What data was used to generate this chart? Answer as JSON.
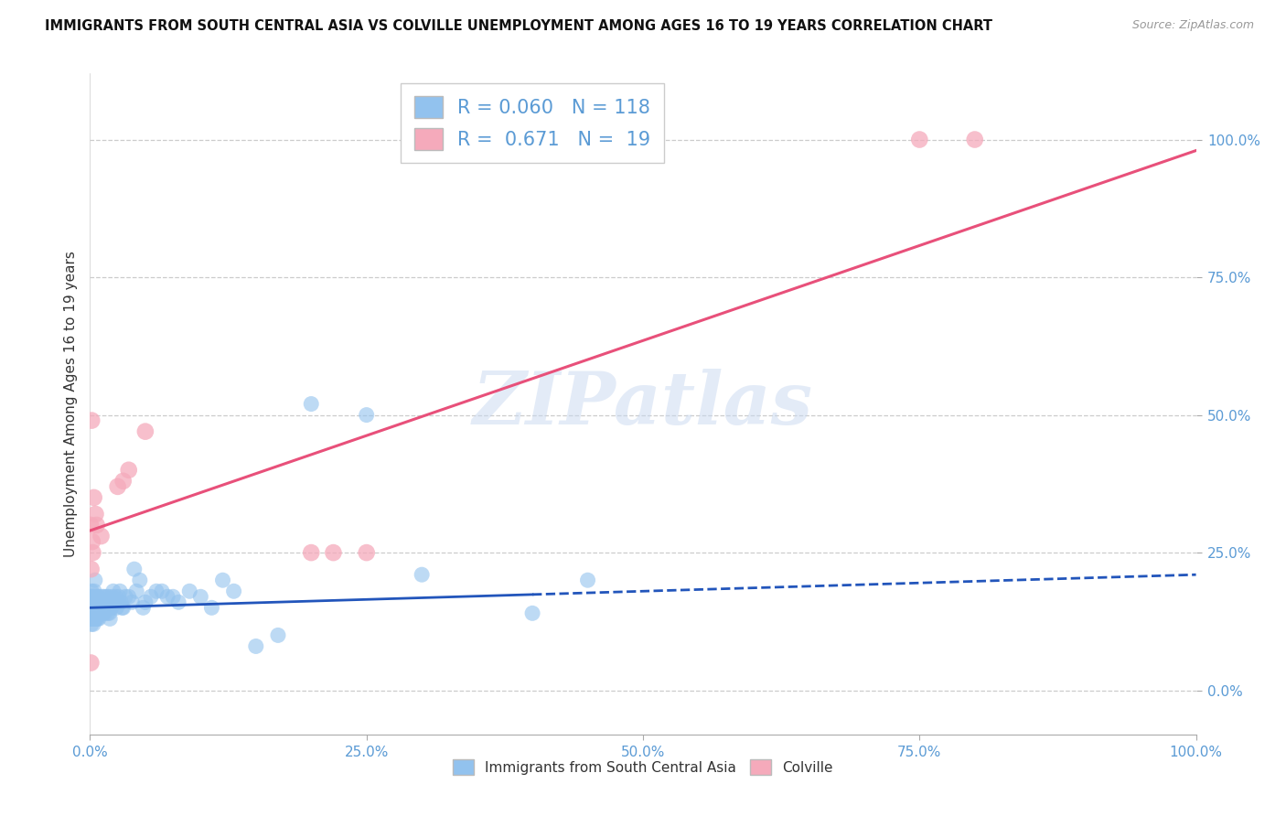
{
  "title": "IMMIGRANTS FROM SOUTH CENTRAL ASIA VS COLVILLE UNEMPLOYMENT AMONG AGES 16 TO 19 YEARS CORRELATION CHART",
  "source": "Source: ZipAtlas.com",
  "ylabel": "Unemployment Among Ages 16 to 19 years",
  "xlim": [
    0,
    100
  ],
  "ylim": [
    -8,
    112
  ],
  "xticks": [
    0,
    25,
    50,
    75,
    100
  ],
  "xtick_labels": [
    "0.0%",
    "25.0%",
    "50.0%",
    "75.0%",
    "100.0%"
  ],
  "yticks": [
    0,
    25,
    50,
    75,
    100
  ],
  "ytick_labels": [
    "0.0%",
    "25.0%",
    "50.0%",
    "75.0%",
    "100.0%"
  ],
  "blue_R": 0.06,
  "blue_N": 118,
  "pink_R": 0.671,
  "pink_N": 19,
  "blue_color": "#92C2EE",
  "pink_color": "#F5AABB",
  "blue_line_color": "#2255BB",
  "pink_line_color": "#E8507A",
  "blue_label": "Immigrants from South Central Asia",
  "pink_label": "Colville",
  "background_color": "#FFFFFF",
  "grid_color": "#CCCCCC",
  "watermark": "ZIPatlas",
  "blue_scatter_x": [
    0.05,
    0.07,
    0.08,
    0.1,
    0.12,
    0.14,
    0.15,
    0.16,
    0.18,
    0.2,
    0.22,
    0.24,
    0.25,
    0.26,
    0.28,
    0.3,
    0.32,
    0.34,
    0.35,
    0.36,
    0.38,
    0.4,
    0.42,
    0.44,
    0.45,
    0.46,
    0.48,
    0.5,
    0.52,
    0.54,
    0.56,
    0.58,
    0.6,
    0.62,
    0.64,
    0.66,
    0.68,
    0.7,
    0.72,
    0.74,
    0.76,
    0.78,
    0.8,
    0.85,
    0.9,
    0.95,
    1.0,
    1.1,
    1.2,
    1.3,
    1.4,
    1.5,
    1.6,
    1.7,
    1.8,
    1.9,
    2.0,
    2.2,
    2.4,
    2.6,
    2.8,
    3.0,
    3.5,
    4.0,
    4.5,
    5.0,
    6.0,
    7.0,
    8.0,
    9.0,
    10.0,
    11.0,
    12.0,
    13.0,
    15.0,
    17.0,
    20.0,
    25.0,
    30.0,
    40.0,
    1.05,
    1.15,
    1.25,
    1.35,
    1.45,
    1.55,
    1.65,
    1.75,
    1.85,
    1.95,
    2.1,
    2.3,
    2.5,
    2.7,
    2.9,
    3.2,
    3.8,
    4.2,
    4.8,
    5.5,
    6.5,
    7.5,
    0.09,
    0.11,
    0.13,
    0.17,
    0.19,
    0.21,
    0.23,
    0.27,
    0.29,
    0.31,
    0.33,
    0.37,
    0.39,
    0.41,
    0.43,
    45.0
  ],
  "blue_scatter_y": [
    15,
    17,
    13,
    16,
    12,
    18,
    14,
    15,
    13,
    17,
    16,
    14,
    15,
    13,
    17,
    12,
    16,
    14,
    15,
    13,
    18,
    16,
    14,
    15,
    20,
    17,
    13,
    16,
    14,
    15,
    17,
    13,
    16,
    15,
    14,
    17,
    13,
    16,
    14,
    15,
    17,
    13,
    16,
    15,
    14,
    16,
    15,
    17,
    14,
    16,
    15,
    17,
    14,
    16,
    13,
    15,
    17,
    16,
    15,
    17,
    16,
    15,
    17,
    22,
    20,
    16,
    18,
    17,
    16,
    18,
    17,
    15,
    20,
    18,
    8,
    10,
    52,
    50,
    21,
    14,
    16,
    15,
    17,
    14,
    16,
    15,
    17,
    14,
    16,
    15,
    18,
    17,
    16,
    18,
    15,
    17,
    16,
    18,
    15,
    17,
    18,
    17,
    13,
    14,
    15,
    17,
    14,
    16,
    13,
    17,
    15,
    13,
    16,
    14,
    15,
    13,
    16,
    20
  ],
  "pink_scatter_x": [
    0.05,
    0.1,
    0.15,
    0.2,
    0.25,
    0.35,
    0.5,
    0.6,
    1.0,
    2.5,
    3.0,
    3.5,
    20.0,
    22.0,
    25.0,
    75.0,
    80.0,
    5.0,
    0.08
  ],
  "pink_scatter_y": [
    30,
    22,
    49,
    27,
    25,
    35,
    32,
    30,
    28,
    37,
    38,
    40,
    25,
    25,
    25,
    100,
    100,
    47,
    5
  ],
  "blue_trend_x0": 0,
  "blue_trend_x1": 100,
  "blue_trend_y0": 15.0,
  "blue_trend_y1": 21.0,
  "blue_solid_end_x": 40,
  "pink_trend_x0": 0,
  "pink_trend_x1": 100,
  "pink_trend_y0": 29.0,
  "pink_trend_y1": 98.0
}
